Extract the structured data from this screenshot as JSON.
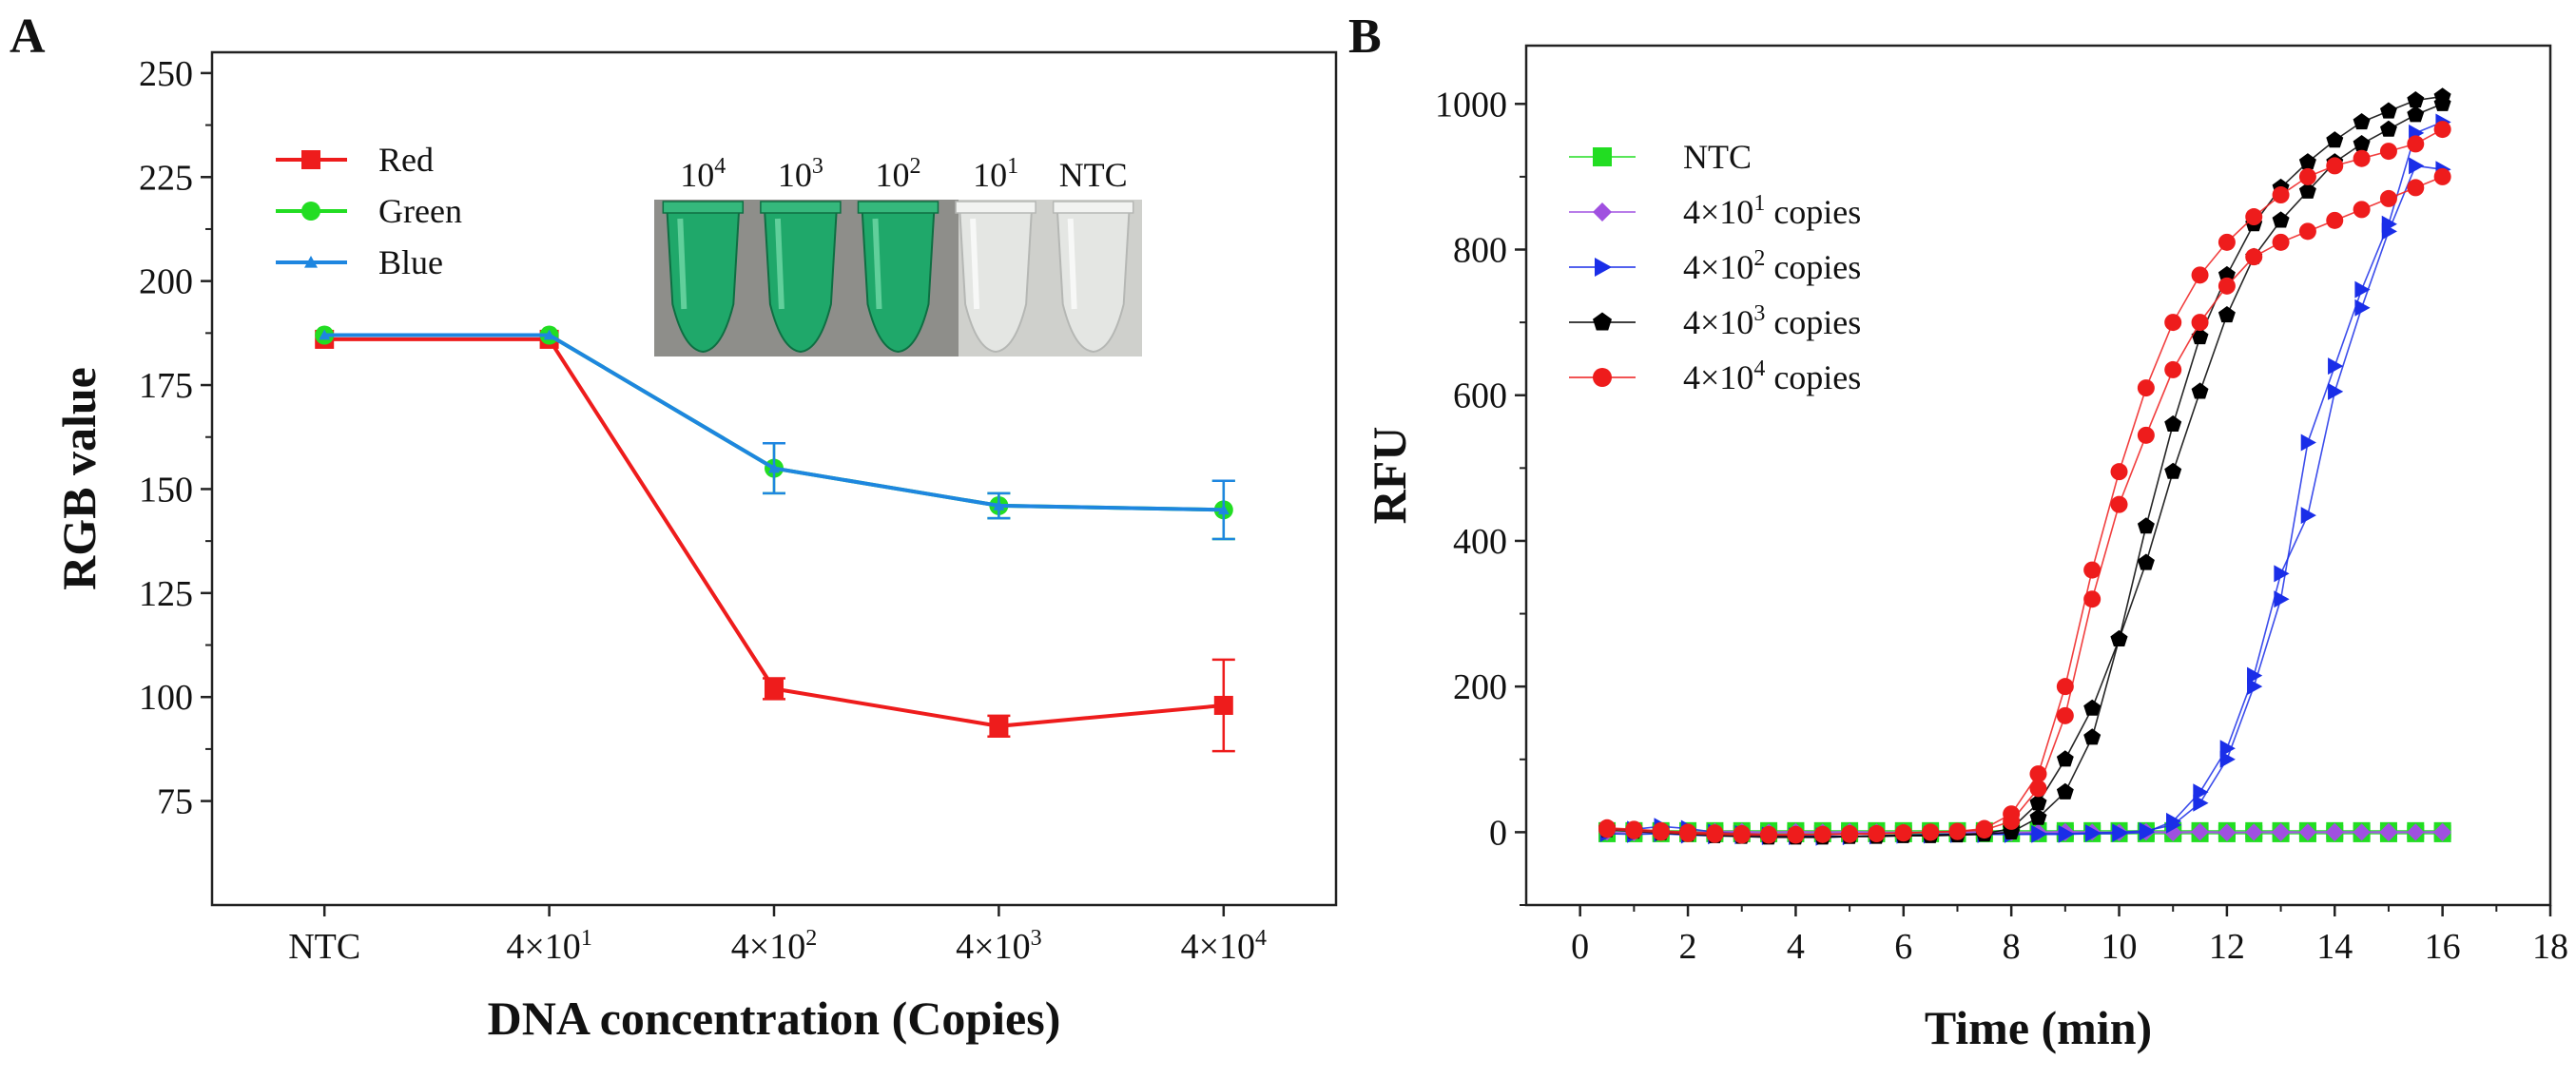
{
  "chart_data": [
    {
      "panel": "A",
      "type": "line",
      "xlabel": "DNA concentration (Copies)",
      "ylabel": "RGB value",
      "categories": [
        "NTC",
        "4×10^1",
        "4×10^2",
        "4×10^3",
        "4×10^4"
      ],
      "ylim": [
        50,
        255
      ],
      "yticks": [
        75,
        100,
        125,
        150,
        175,
        200,
        225,
        250
      ],
      "series": [
        {
          "name": "Red",
          "color": "#ee1c1c",
          "marker": "square",
          "values": [
            186,
            186,
            102,
            93,
            98
          ],
          "errors": [
            0,
            0,
            2.5,
            2.5,
            11
          ]
        },
        {
          "name": "Green",
          "color": "#22dd22",
          "marker": "circle",
          "values": [
            187,
            187,
            155,
            146,
            145
          ],
          "errors": [
            0,
            0,
            6,
            3,
            7
          ]
        },
        {
          "name": "Blue",
          "color": "#1e86e0",
          "marker": "triangle",
          "values": [
            187,
            187,
            155,
            146,
            145
          ],
          "errors": [
            0,
            0,
            6,
            3,
            7
          ]
        }
      ],
      "inset": {
        "labels": [
          "10^4",
          "10^3",
          "10^2",
          "10^1",
          "NTC"
        ],
        "tube_colors": [
          "green",
          "green",
          "green",
          "clear",
          "clear"
        ]
      }
    },
    {
      "panel": "B",
      "type": "line",
      "xlabel": "Time (min)",
      "ylabel": "RFU",
      "xlim": [
        -1,
        18
      ],
      "ylim": [
        -100,
        1080
      ],
      "xticks": [
        0,
        2,
        4,
        6,
        8,
        10,
        12,
        14,
        16,
        18
      ],
      "yticks": [
        0,
        200,
        400,
        600,
        800,
        1000
      ],
      "x": [
        0.5,
        1,
        1.5,
        2,
        2.5,
        3,
        3.5,
        4,
        4.5,
        5,
        5.5,
        6,
        6.5,
        7,
        7.5,
        8,
        8.5,
        9,
        9.5,
        10,
        10.5,
        11,
        11.5,
        12,
        12.5,
        13,
        13.5,
        14,
        14.5,
        15,
        15.5,
        16
      ],
      "series": [
        {
          "name": "NTC",
          "color": "#22dd22",
          "marker": "square",
          "replicates": [
            [
              2,
              2,
              2,
              2,
              2,
              2,
              2,
              2,
              2,
              2,
              2,
              2,
              2,
              2,
              2,
              2,
              2,
              2,
              2,
              2,
              2,
              2,
              2,
              2,
              2,
              2,
              2,
              2,
              2,
              2,
              2,
              2
            ],
            [
              -2,
              -2,
              -2,
              -2,
              -2,
              -2,
              -2,
              -2,
              -2,
              -2,
              -2,
              -2,
              -2,
              -2,
              -2,
              -2,
              -2,
              -2,
              -2,
              -2,
              -2,
              -2,
              -2,
              -2,
              -2,
              -2,
              -2,
              -2,
              -2,
              -2,
              -2,
              -2
            ]
          ]
        },
        {
          "name": "4×10^1 copies",
          "color": "#a050e0",
          "marker": "diamond",
          "replicates": [
            [
              3,
              2,
              1,
              0,
              1,
              1,
              0,
              1,
              0,
              1,
              0,
              0,
              0,
              1,
              0,
              0,
              0,
              1,
              0,
              0,
              1,
              0,
              1,
              0,
              0,
              1,
              0,
              1,
              0,
              1,
              0,
              1
            ],
            [
              0,
              -1,
              0,
              -1,
              0,
              -1,
              0,
              -1,
              0,
              -1,
              0,
              -1,
              0,
              -1,
              0,
              -1,
              0,
              -1,
              0,
              -1,
              0,
              -1,
              0,
              -1,
              0,
              -1,
              0,
              -1,
              0,
              -1,
              0,
              -1
            ]
          ]
        },
        {
          "name": "4×10^2 copies",
          "color": "#1a2ee8",
          "marker": "triangle-right",
          "replicates": [
            [
              2,
              4,
              8,
              5,
              0,
              -2,
              -4,
              -5,
              -5,
              -6,
              -5,
              -4,
              -4,
              -3,
              -3,
              -3,
              -3,
              -3,
              -2,
              -2,
              0,
              15,
              55,
              115,
              215,
              355,
              435,
              605,
              720,
              825,
              915,
              910
            ],
            [
              -2,
              -3,
              -2,
              -4,
              -5,
              -5,
              -6,
              -6,
              -7,
              -6,
              -5,
              -4,
              -3,
              -3,
              -3,
              -3,
              -2,
              -2,
              -1,
              0,
              2,
              10,
              40,
              100,
              200,
              320,
              535,
              640,
              745,
              835,
              960,
              975
            ]
          ]
        },
        {
          "name": "4×10^3 copies",
          "color": "#000000",
          "marker": "pentagon",
          "replicates": [
            [
              5,
              3,
              1,
              -1,
              -3,
              -4,
              -5,
              -6,
              -6,
              -6,
              -5,
              -4,
              -4,
              -3,
              -2,
              5,
              40,
              100,
              170,
              265,
              420,
              560,
              680,
              765,
              835,
              885,
              920,
              950,
              975,
              990,
              1005,
              1010
            ],
            [
              3,
              1,
              -1,
              -3,
              -5,
              -6,
              -7,
              -7,
              -7,
              -6,
              -6,
              -5,
              -5,
              -4,
              -3,
              0,
              20,
              55,
              130,
              265,
              370,
              495,
              605,
              710,
              790,
              840,
              880,
              920,
              945,
              965,
              985,
              1000
            ]
          ]
        },
        {
          "name": "4×10^4 copies",
          "color": "#ee1c1c",
          "marker": "circle",
          "replicates": [
            [
              6,
              4,
              2,
              0,
              -1,
              -2,
              -3,
              -3,
              -3,
              -2,
              -2,
              -1,
              0,
              1,
              5,
              25,
              80,
              200,
              360,
              495,
              610,
              700,
              765,
              810,
              845,
              875,
              900,
              915,
              925,
              935,
              945,
              965
            ],
            [
              4,
              2,
              0,
              -2,
              -3,
              -4,
              -4,
              -4,
              -3,
              -3,
              -2,
              -1,
              0,
              1,
              3,
              15,
              60,
              160,
              320,
              450,
              545,
              635,
              700,
              750,
              790,
              810,
              825,
              840,
              855,
              870,
              885,
              900
            ]
          ]
        }
      ]
    }
  ]
}
